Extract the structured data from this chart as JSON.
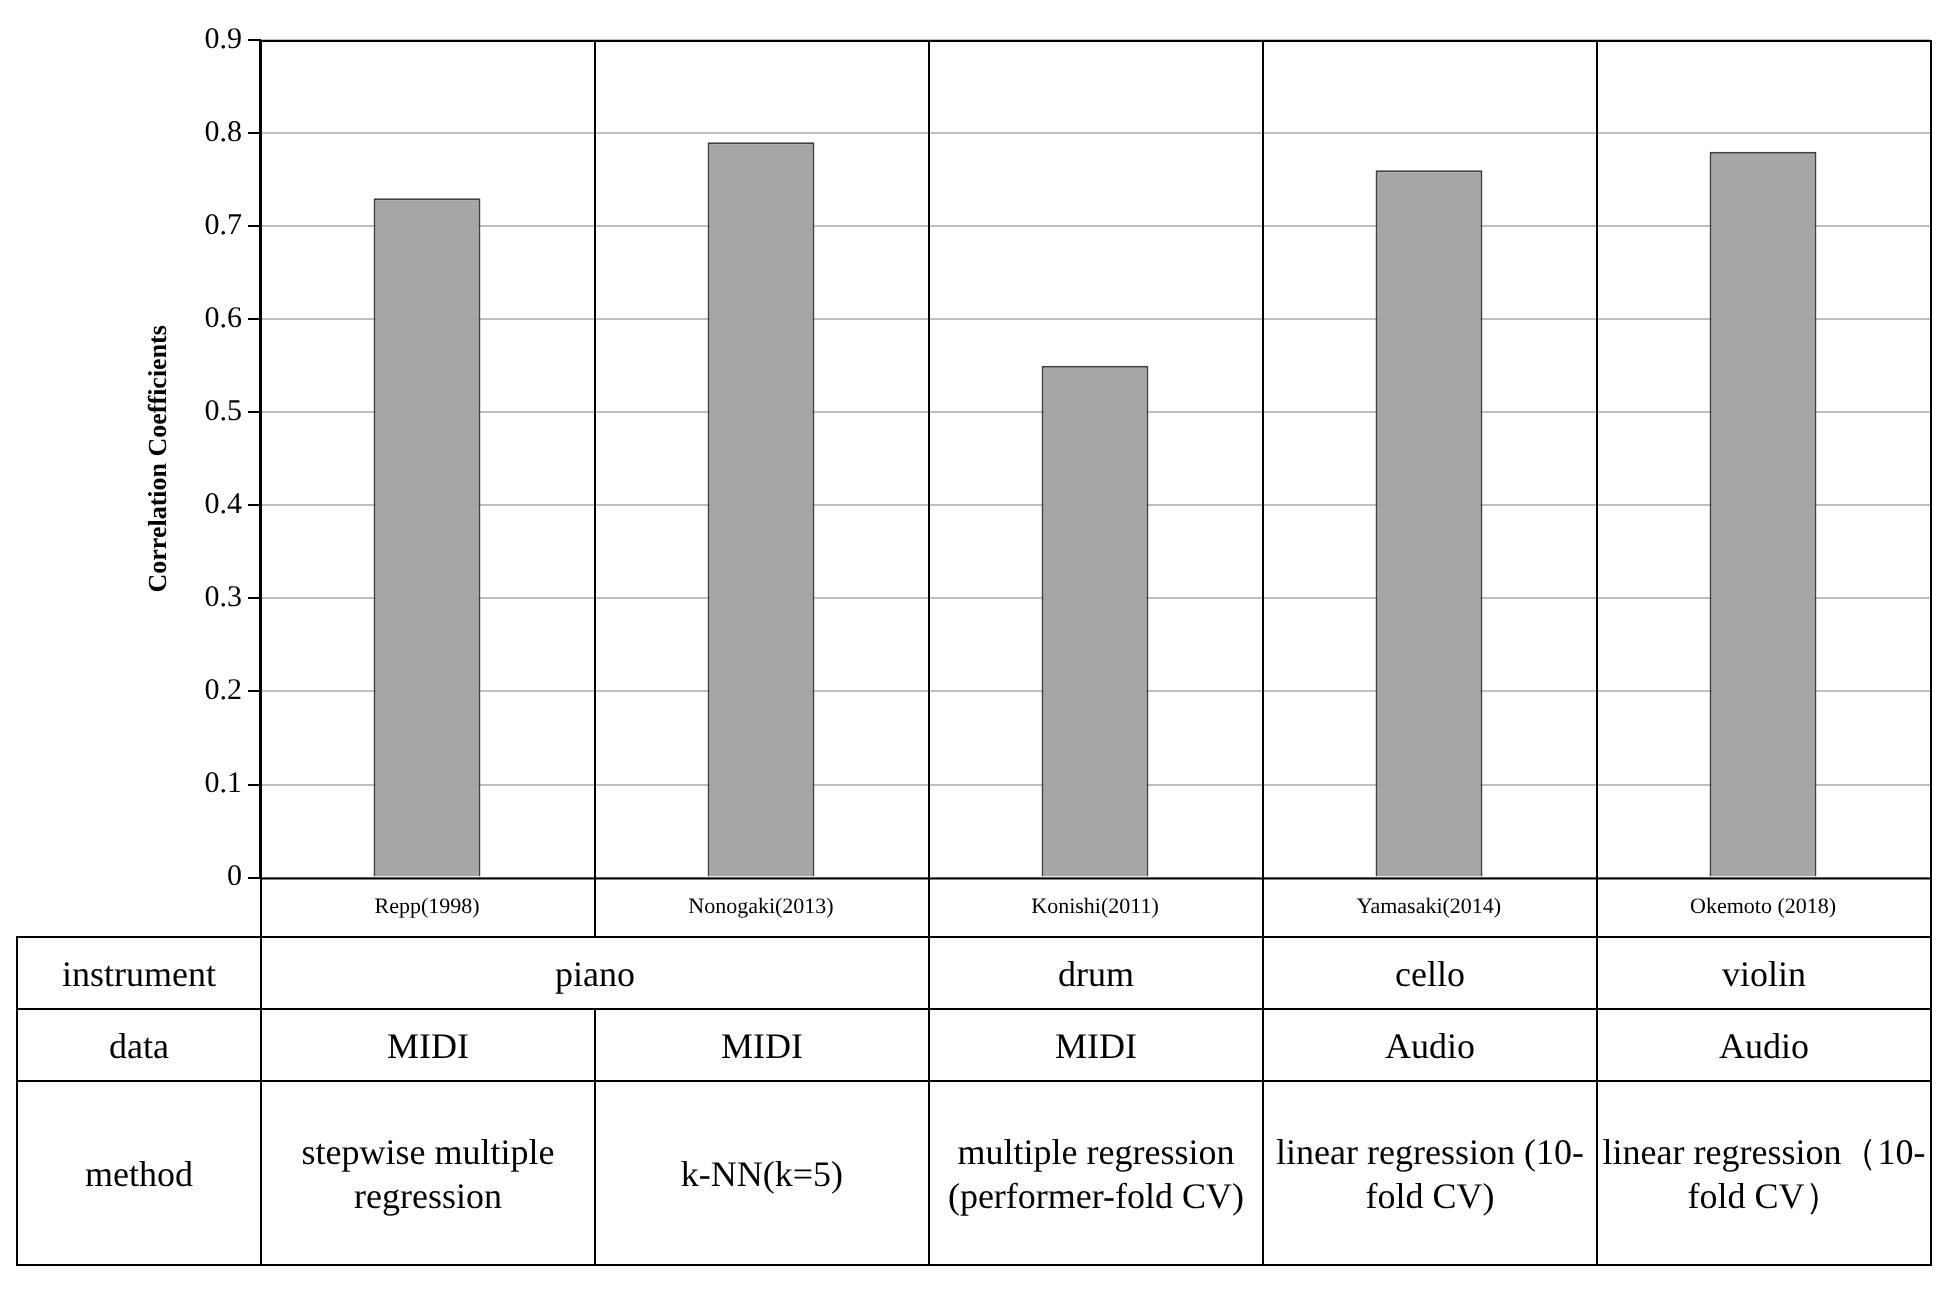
{
  "chart_data": {
    "type": "bar",
    "ylabel": "Correlation Coefficients",
    "categories": [
      "Repp(1998)",
      "Nonogaki(2013)",
      "Konishi(2011)",
      "Yamasaki(2014)",
      "Okemoto (2018)"
    ],
    "values": [
      0.73,
      0.79,
      0.55,
      0.76,
      0.78
    ],
    "color": "#a6a6a6",
    "ylim": [
      0,
      0.9
    ],
    "yticks": [
      0,
      0.1,
      0.2,
      0.3,
      0.4,
      0.5,
      0.6,
      0.7,
      0.8,
      0.9
    ],
    "grid": "y",
    "legend": false,
    "annotations": [
      "instrument",
      "piano",
      "drum",
      "cello",
      "violin",
      "data",
      "MIDI",
      "MIDI",
      "MIDI",
      "Audio",
      "Audio",
      "method",
      "stepwise multiple regression",
      "k-NN(k=5)",
      "multiple regression (performer-fold CV)",
      "linear regression (10-fold CV)",
      "linear regression（10-fold CV）"
    ]
  }
}
